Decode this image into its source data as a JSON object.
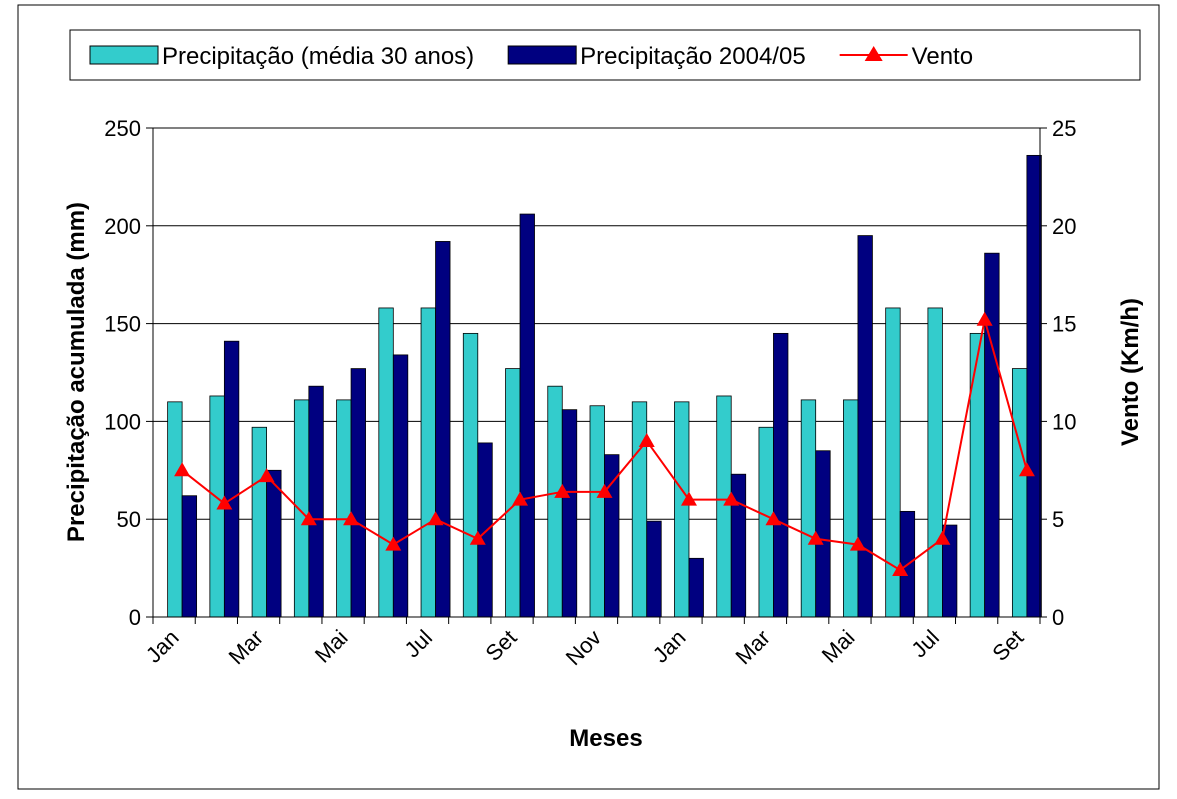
{
  "chart_data": {
    "type": "bar",
    "categories": [
      "Jan",
      null,
      "Mar",
      null,
      "Mai",
      null,
      "Jul",
      null,
      "Set",
      null,
      "Nov",
      null,
      "Jan",
      null,
      "Mar",
      null,
      "Mai",
      null,
      "Jul",
      null,
      "Set"
    ],
    "x_label": "Meses",
    "y_label": "Precipitação acumulada (mm)",
    "y2_label": "Vento (Km/h)",
    "ylim": [
      0,
      250
    ],
    "yticks": [
      0,
      50,
      100,
      150,
      200,
      250
    ],
    "y2lim": [
      0,
      25
    ],
    "y2ticks": [
      0,
      5,
      10,
      15,
      20,
      25
    ],
    "grid": true,
    "legend": "top",
    "series": [
      {
        "name": "Precipitação (média 30 anos)",
        "type": "bar",
        "color": "#33cccc",
        "values": [
          110,
          113,
          97,
          111,
          111,
          158,
          158,
          145,
          127,
          118,
          108,
          110,
          110,
          113,
          97,
          111,
          111,
          158,
          158,
          145,
          127
        ]
      },
      {
        "name": "Precipitação 2004/05",
        "type": "bar",
        "color": "#000080",
        "values": [
          62,
          141,
          75,
          118,
          127,
          134,
          192,
          89,
          206,
          106,
          83,
          49,
          30,
          73,
          145,
          85,
          195,
          54,
          47,
          186,
          236
        ]
      },
      {
        "name": "Vento",
        "type": "line",
        "axis": "y2",
        "color": "#ff0000",
        "values": [
          7.5,
          5.8,
          7.2,
          5,
          5,
          3.7,
          5,
          4,
          6,
          6.4,
          6.4,
          9,
          6,
          6,
          5,
          4,
          3.7,
          2.4,
          4,
          15.2,
          7.5
        ]
      }
    ]
  }
}
